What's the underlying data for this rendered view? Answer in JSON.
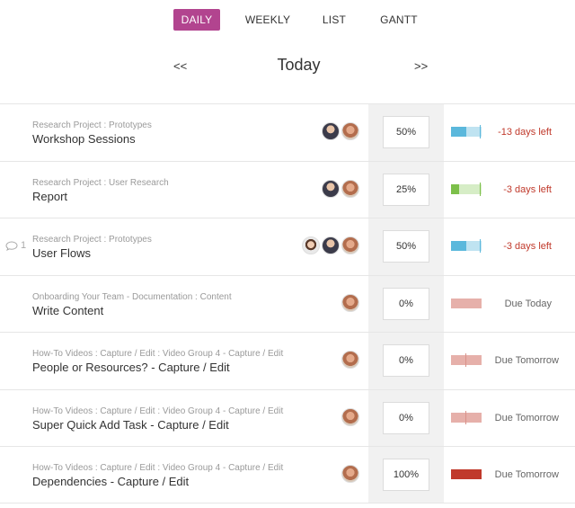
{
  "tabs": [
    {
      "label": "DAILY",
      "active": true
    },
    {
      "label": "WEEKLY",
      "active": false
    },
    {
      "label": "LIST",
      "active": false
    },
    {
      "label": "GANTT",
      "active": false
    }
  ],
  "date_nav": {
    "prev": "<<",
    "label": "Today",
    "next": ">>"
  },
  "colors": {
    "accent": "#b2448f",
    "blue_fill": "#5bb8dc",
    "blue_track": "#bfe3f1",
    "green_fill": "#7cbf4a",
    "green_track": "#d6edc6",
    "due_track": "#e6b0aa",
    "done_fill": "#c0392b",
    "overdue_text": "#c0392b"
  },
  "tasks": [
    {
      "crumb": "Research Project : Prototypes",
      "title": "Workshop Sessions",
      "progress": "50%",
      "status": "-13 days left",
      "comments": ""
    },
    {
      "crumb": "Research Project : User Research",
      "title": "Report",
      "progress": "25%",
      "status": "-3 days left",
      "comments": ""
    },
    {
      "crumb": "Research Project : Prototypes",
      "title": "User Flows",
      "progress": "50%",
      "status": "-3 days left",
      "comments": "1"
    },
    {
      "crumb": "Onboarding Your Team - Documentation : Content",
      "title": "Write Content",
      "progress": "0%",
      "status": "Due Today",
      "comments": ""
    },
    {
      "crumb": "How-To Videos : Capture / Edit : Video Group 4 - Capture / Edit",
      "title": "People or Resources? - Capture / Edit",
      "progress": "0%",
      "status": "Due Tomorrow",
      "comments": ""
    },
    {
      "crumb": "How-To Videos : Capture / Edit : Video Group 4 - Capture / Edit",
      "title": "Super Quick Add Task - Capture / Edit",
      "progress": "0%",
      "status": "Due Tomorrow",
      "comments": ""
    },
    {
      "crumb": "How-To Videos : Capture / Edit : Video Group 4 - Capture / Edit",
      "title": "Dependencies - Capture / Edit",
      "progress": "100%",
      "status": "Due Tomorrow",
      "comments": ""
    }
  ]
}
